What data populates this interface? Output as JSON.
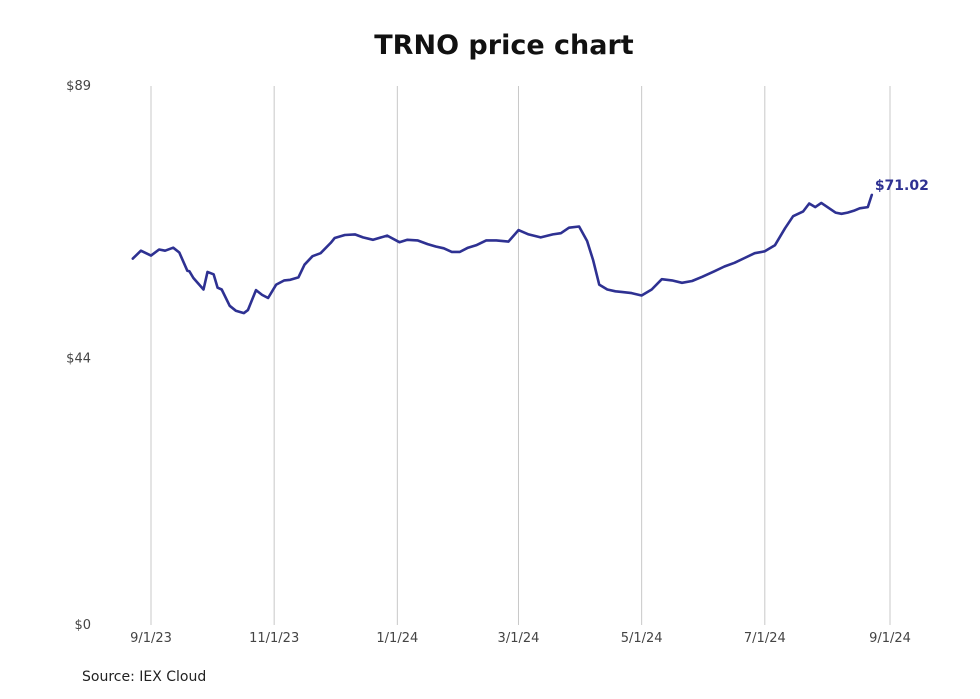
{
  "chart_data": {
    "type": "line",
    "title": "TRNO price chart",
    "xlabel": "",
    "ylabel": "",
    "x_ticks": [
      {
        "label": "9/1/23",
        "date": "2023-09-01"
      },
      {
        "label": "11/1/23",
        "date": "2023-11-01"
      },
      {
        "label": "1/1/24",
        "date": "2024-01-01"
      },
      {
        "label": "3/1/24",
        "date": "2024-03-01"
      },
      {
        "label": "5/1/24",
        "date": "2024-05-01"
      },
      {
        "label": "7/1/24",
        "date": "2024-07-01"
      },
      {
        "label": "9/1/24",
        "date": "2024-09-01"
      }
    ],
    "y_ticks": [
      {
        "label": "$89",
        "value": 89
      },
      {
        "label": "$44",
        "value": 44
      },
      {
        "label": "$0",
        "value": 0
      }
    ],
    "xlim": [
      "2023-08-23",
      "2024-09-01"
    ],
    "ylim": [
      0,
      89
    ],
    "grid": "vertical",
    "color": "#2e3192",
    "series": [
      {
        "x": [
          "2023-08-23",
          "2023-08-27",
          "2023-09-01",
          "2023-09-05",
          "2023-09-08",
          "2023-09-12",
          "2023-09-15",
          "2023-09-19",
          "2023-09-20",
          "2023-09-22",
          "2023-09-27",
          "2023-09-29",
          "2023-10-02",
          "2023-10-04",
          "2023-10-06",
          "2023-10-10",
          "2023-10-13",
          "2023-10-17",
          "2023-10-19",
          "2023-10-23",
          "2023-10-26",
          "2023-10-29",
          "2023-11-02",
          "2023-11-06",
          "2023-11-09",
          "2023-11-13",
          "2023-11-16",
          "2023-11-20",
          "2023-11-24",
          "2023-11-29",
          "2023-12-01",
          "2023-12-06",
          "2023-12-11",
          "2023-12-15",
          "2023-12-20",
          "2023-12-27",
          "2024-01-02",
          "2024-01-06",
          "2024-01-11",
          "2024-01-16",
          "2024-01-20",
          "2024-01-24",
          "2024-01-28",
          "2024-02-01",
          "2024-02-05",
          "2024-02-09",
          "2024-02-14",
          "2024-02-19",
          "2024-02-25",
          "2024-03-01",
          "2024-03-06",
          "2024-03-12",
          "2024-03-18",
          "2024-03-22",
          "2024-03-26",
          "2024-03-31",
          "2024-04-04",
          "2024-04-07",
          "2024-04-10",
          "2024-04-14",
          "2024-04-18",
          "2024-04-21",
          "2024-04-26",
          "2024-05-01",
          "2024-05-06",
          "2024-05-11",
          "2024-05-16",
          "2024-05-21",
          "2024-05-26",
          "2024-05-31",
          "2024-06-06",
          "2024-06-11",
          "2024-06-16",
          "2024-06-21",
          "2024-06-26",
          "2024-07-01",
          "2024-07-06",
          "2024-07-11",
          "2024-07-15",
          "2024-07-20",
          "2024-07-23",
          "2024-07-26",
          "2024-07-29",
          "2024-08-01",
          "2024-08-05",
          "2024-08-08",
          "2024-08-11",
          "2024-08-14",
          "2024-08-17",
          "2024-08-21",
          "2024-08-23"
        ],
        "y": [
          60.5,
          61.8,
          61.0,
          62.0,
          61.8,
          62.3,
          61.5,
          58.5,
          58.4,
          57.3,
          55.4,
          58.3,
          57.9,
          55.7,
          55.4,
          52.7,
          51.9,
          51.5,
          52.0,
          55.3,
          54.5,
          54.0,
          56.2,
          56.9,
          57.0,
          57.4,
          59.5,
          60.9,
          61.4,
          63.1,
          63.9,
          64.4,
          64.5,
          64.0,
          63.6,
          64.3,
          63.2,
          63.6,
          63.5,
          62.9,
          62.5,
          62.2,
          61.6,
          61.6,
          62.3,
          62.7,
          63.5,
          63.5,
          63.3,
          65.2,
          64.5,
          64.0,
          64.5,
          64.7,
          65.6,
          65.8,
          63.4,
          60.2,
          56.2,
          55.4,
          55.1,
          55.0,
          54.8,
          54.4,
          55.4,
          57.1,
          56.9,
          56.5,
          56.8,
          57.5,
          58.4,
          59.2,
          59.8,
          60.6,
          61.4,
          61.7,
          62.7,
          65.5,
          67.5,
          68.3,
          69.6,
          69.0,
          69.7,
          69.0,
          68.1,
          67.9,
          68.1,
          68.4,
          68.8,
          69.0,
          71.02
        ]
      }
    ],
    "end_label": "$71.02"
  },
  "source_note": "Source: IEX Cloud"
}
